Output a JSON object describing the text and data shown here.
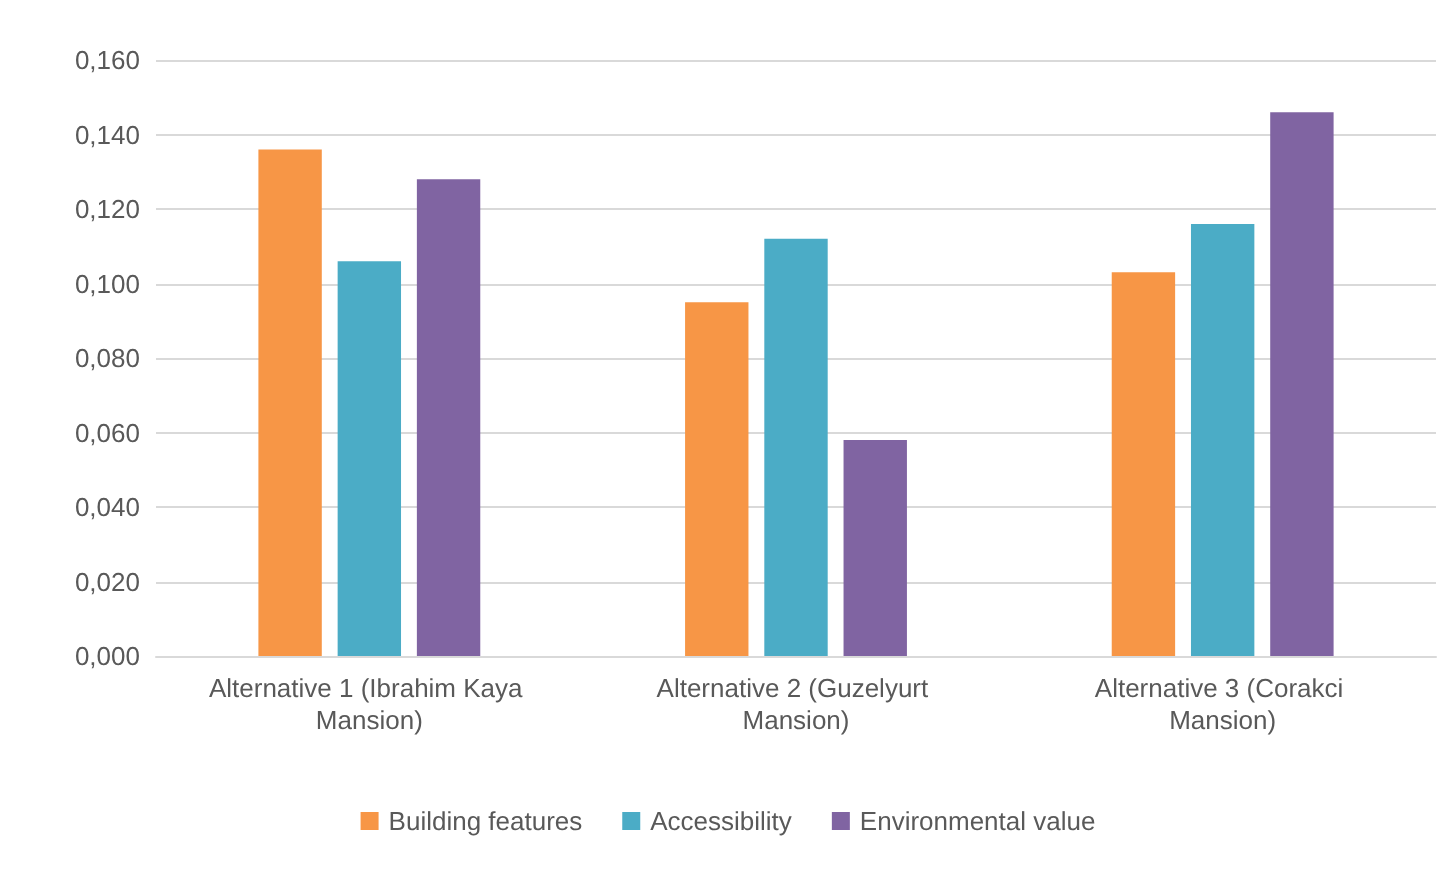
{
  "chart_data": {
    "type": "bar",
    "categories": [
      "Alternative 1 (Ibrahim Kaya Mansion)",
      "Alternative 2 (Guzelyurt Mansion)",
      "Alternative 3 (Corakci Mansion)"
    ],
    "series": [
      {
        "name": "Building features",
        "color": "#f79646",
        "values": [
          0.136,
          0.095,
          0.103
        ]
      },
      {
        "name": "Accessibility",
        "color": "#4bacc6",
        "values": [
          0.106,
          0.112,
          0.116
        ]
      },
      {
        "name": "Environmental value",
        "color": "#8064a2",
        "values": [
          0.128,
          0.058,
          0.146
        ]
      }
    ],
    "ylim": [
      0,
      0.16
    ],
    "yticks": [
      {
        "value": 0,
        "label": "0,000"
      },
      {
        "value": 0.02,
        "label": "0,020"
      },
      {
        "value": 0.04,
        "label": "0,040"
      },
      {
        "value": 0.06,
        "label": "0,060"
      },
      {
        "value": 0.08,
        "label": "0,080"
      },
      {
        "value": 0.1,
        "label": "0,100"
      },
      {
        "value": 0.12,
        "label": "0,120"
      },
      {
        "value": 0.14,
        "label": "0,140"
      },
      {
        "value": 0.16,
        "label": "0,160"
      }
    ],
    "grid": "y",
    "legend": "bottom"
  }
}
